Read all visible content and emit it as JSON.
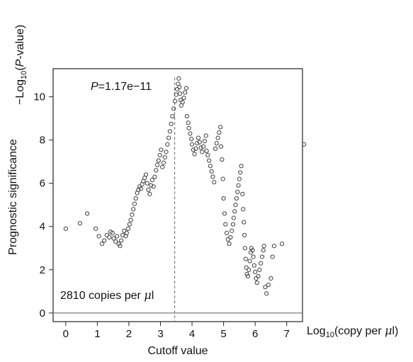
{
  "chart_data": {
    "type": "scatter",
    "title": "",
    "ylabel_top": {
      "prefix": "−Log",
      "sub": "10",
      "open": "(",
      "italic": "P",
      "rest": "-value)"
    },
    "ylabel": "Prognostic significance",
    "xlabel": "Cutoff value",
    "xunit": {
      "prefix": "Log",
      "sub": "10",
      "rest": "(copy per ",
      "mu": "μ",
      "end": "l)"
    },
    "annotation_p": {
      "italic": "P",
      "text": "=1.17e−11"
    },
    "annotation_cutoff": {
      "text": "2810 copies per ",
      "mu": "μ",
      "end": "l"
    },
    "cutoff_x": 3.45,
    "hline_y": 0,
    "xlim": [
      -0.4,
      7.5
    ],
    "ylim": [
      -0.4,
      11.3
    ],
    "xticks": [
      0,
      1,
      2,
      3,
      4,
      5,
      6,
      7
    ],
    "yticks": [
      0,
      2,
      4,
      6,
      8,
      10
    ],
    "grid": false,
    "legend": "none",
    "colors": {
      "marker": "#3d3d3d",
      "frame": "#222222",
      "cutoff_line": "#7a7a7a"
    },
    "points": [
      [
        0.0,
        3.9
      ],
      [
        0.45,
        4.15
      ],
      [
        0.68,
        4.6
      ],
      [
        0.95,
        3.9
      ],
      [
        1.05,
        3.55
      ],
      [
        1.15,
        3.2
      ],
      [
        1.22,
        3.35
      ],
      [
        1.3,
        3.6
      ],
      [
        1.38,
        3.5
      ],
      [
        1.42,
        3.75
      ],
      [
        1.48,
        3.7
      ],
      [
        1.52,
        3.45
      ],
      [
        1.58,
        3.3
      ],
      [
        1.62,
        3.55
      ],
      [
        1.68,
        3.2
      ],
      [
        1.72,
        3.1
      ],
      [
        1.76,
        3.35
      ],
      [
        1.8,
        3.6
      ],
      [
        1.85,
        3.8
      ],
      [
        1.9,
        3.55
      ],
      [
        1.93,
        3.7
      ],
      [
        1.98,
        3.9
      ],
      [
        2.02,
        4.1
      ],
      [
        2.06,
        4.3
      ],
      [
        2.1,
        4.55
      ],
      [
        2.14,
        4.8
      ],
      [
        2.18,
        5.05
      ],
      [
        2.22,
        5.3
      ],
      [
        2.26,
        5.55
      ],
      [
        2.3,
        5.7
      ],
      [
        2.34,
        5.85
      ],
      [
        2.38,
        5.75
      ],
      [
        2.42,
        5.95
      ],
      [
        2.46,
        6.1
      ],
      [
        2.5,
        6.25
      ],
      [
        2.54,
        6.4
      ],
      [
        2.58,
        6.0
      ],
      [
        2.62,
        5.7
      ],
      [
        2.66,
        5.5
      ],
      [
        2.7,
        5.9
      ],
      [
        2.74,
        6.15
      ],
      [
        2.78,
        5.85
      ],
      [
        2.82,
        6.3
      ],
      [
        2.86,
        6.6
      ],
      [
        2.9,
        6.85
      ],
      [
        2.94,
        7.05
      ],
      [
        2.98,
        7.3
      ],
      [
        3.02,
        7.55
      ],
      [
        3.06,
        6.75
      ],
      [
        3.1,
        6.95
      ],
      [
        3.14,
        7.2
      ],
      [
        3.18,
        7.45
      ],
      [
        3.22,
        7.8
      ],
      [
        3.26,
        8.1
      ],
      [
        3.3,
        8.4
      ],
      [
        3.34,
        8.75
      ],
      [
        3.38,
        9.1
      ],
      [
        3.42,
        9.45
      ],
      [
        3.46,
        9.8
      ],
      [
        3.5,
        10.1
      ],
      [
        3.53,
        10.35
      ],
      [
        3.56,
        10.6
      ],
      [
        3.58,
        10.85
      ],
      [
        3.6,
        10.45
      ],
      [
        3.62,
        10.15
      ],
      [
        3.64,
        9.85
      ],
      [
        3.66,
        9.6
      ],
      [
        3.7,
        9.75
      ],
      [
        3.74,
        9.95
      ],
      [
        3.78,
        10.2
      ],
      [
        3.82,
        10.4
      ],
      [
        3.84,
        9.1
      ],
      [
        3.88,
        8.8
      ],
      [
        3.9,
        8.55
      ],
      [
        3.94,
        8.3
      ],
      [
        3.98,
        8.05
      ],
      [
        4.0,
        7.8
      ],
      [
        4.04,
        7.55
      ],
      [
        4.08,
        7.35
      ],
      [
        4.12,
        7.6
      ],
      [
        4.16,
        7.85
      ],
      [
        4.2,
        8.1
      ],
      [
        4.24,
        7.9
      ],
      [
        4.28,
        7.65
      ],
      [
        4.32,
        7.45
      ],
      [
        4.36,
        7.7
      ],
      [
        4.4,
        7.95
      ],
      [
        4.44,
        8.2
      ],
      [
        4.46,
        7.5
      ],
      [
        4.5,
        7.3
      ],
      [
        4.54,
        7.05
      ],
      [
        4.58,
        6.8
      ],
      [
        4.62,
        6.55
      ],
      [
        4.66,
        6.3
      ],
      [
        4.7,
        6.05
      ],
      [
        4.74,
        7.6
      ],
      [
        4.78,
        7.85
      ],
      [
        4.82,
        8.1
      ],
      [
        4.86,
        8.35
      ],
      [
        4.9,
        8.6
      ],
      [
        4.92,
        7.7
      ],
      [
        4.95,
        7.1
      ],
      [
        4.98,
        6.2
      ],
      [
        5.0,
        5.3
      ],
      [
        5.03,
        4.6
      ],
      [
        5.06,
        4.1
      ],
      [
        5.1,
        3.7
      ],
      [
        5.14,
        3.4
      ],
      [
        5.18,
        3.2
      ],
      [
        5.22,
        3.5
      ],
      [
        5.26,
        3.8
      ],
      [
        5.3,
        4.1
      ],
      [
        5.32,
        4.4
      ],
      [
        5.35,
        4.7
      ],
      [
        5.38,
        5.0
      ],
      [
        5.41,
        5.3
      ],
      [
        5.44,
        5.6
      ],
      [
        5.47,
        5.9
      ],
      [
        5.5,
        6.2
      ],
      [
        5.53,
        6.5
      ],
      [
        5.56,
        6.8
      ],
      [
        5.6,
        5.5
      ],
      [
        5.62,
        4.8
      ],
      [
        5.64,
        4.2
      ],
      [
        5.66,
        3.6
      ],
      [
        5.68,
        3.0
      ],
      [
        5.7,
        2.5
      ],
      [
        5.72,
        2.1
      ],
      [
        5.74,
        1.8
      ],
      [
        5.77,
        1.7
      ],
      [
        5.8,
        2.0
      ],
      [
        5.83,
        2.4
      ],
      [
        5.86,
        2.8
      ],
      [
        5.88,
        3.0
      ],
      [
        5.92,
        2.9
      ],
      [
        5.94,
        2.6
      ],
      [
        5.97,
        2.2
      ],
      [
        6.0,
        1.9
      ],
      [
        6.03,
        1.6
      ],
      [
        6.06,
        1.4
      ],
      [
        6.1,
        1.7
      ],
      [
        6.14,
        2.0
      ],
      [
        6.18,
        2.3
      ],
      [
        6.22,
        2.6
      ],
      [
        6.26,
        2.9
      ],
      [
        6.28,
        3.1
      ],
      [
        6.32,
        1.2
      ],
      [
        6.36,
        0.9
      ],
      [
        6.42,
        1.3
      ],
      [
        6.5,
        1.6
      ],
      [
        6.55,
        2.6
      ],
      [
        6.6,
        3.1
      ],
      [
        6.85,
        3.2
      ],
      [
        7.55,
        7.8
      ]
    ]
  }
}
